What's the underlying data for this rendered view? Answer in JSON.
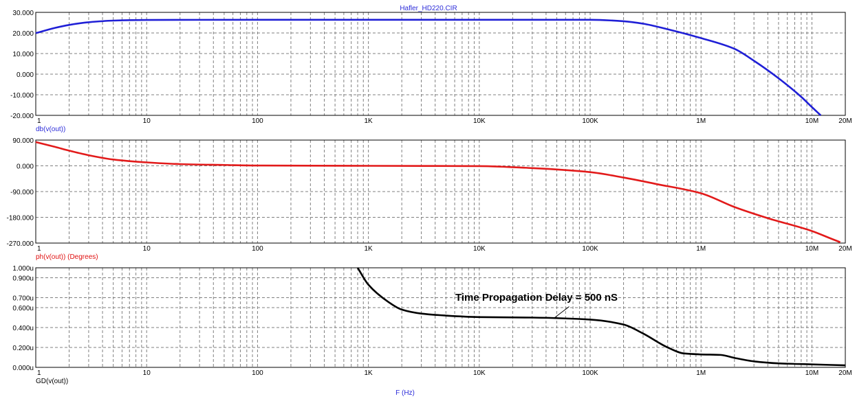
{
  "title": "Hafler_HD220.CIR",
  "x_axis_label": "F (Hz)",
  "x_ticks": [
    {
      "f": 1,
      "label": "1"
    },
    {
      "f": 10,
      "label": "10"
    },
    {
      "f": 100,
      "label": "100"
    },
    {
      "f": 1000,
      "label": "1K"
    },
    {
      "f": 10000,
      "label": "10K"
    },
    {
      "f": 100000,
      "label": "100K"
    },
    {
      "f": 1000000,
      "label": "1M"
    },
    {
      "f": 10000000,
      "label": "10M"
    },
    {
      "f": 20000000,
      "label": "20M"
    }
  ],
  "colors": {
    "grid": "#7f7f7f",
    "frame": "#000000"
  },
  "chart_data": [
    {
      "type": "line",
      "xscale": "log",
      "xlim": [
        1,
        20000000
      ],
      "ylim": [
        -20,
        30
      ],
      "label": "db(v(out))",
      "label_color": "#2b2bd9",
      "line_color": "#1f1fd6",
      "y_ticks": [
        {
          "v": 30,
          "label": "30.000"
        },
        {
          "v": 20,
          "label": "20.000"
        },
        {
          "v": 10,
          "label": "10.000"
        },
        {
          "v": 0,
          "label": "0.000"
        },
        {
          "v": -10,
          "label": "-10.000"
        },
        {
          "v": -20,
          "label": "-20.000"
        }
      ],
      "x": [
        1,
        1.5,
        2,
        3,
        5,
        10,
        100,
        1000,
        10000,
        100000,
        200000,
        300000,
        500000,
        1000000,
        2000000,
        3000000,
        5000000,
        8000000,
        10000000,
        12000000
      ],
      "y": [
        19.9,
        22.5,
        23.9,
        25.2,
        26.0,
        26.3,
        26.4,
        26.4,
        26.4,
        26.4,
        25.7,
        24.5,
        21.8,
        17.5,
        12.3,
        6.5,
        -2.0,
        -11.0,
        -16.0,
        -20.0
      ]
    },
    {
      "type": "line",
      "xscale": "log",
      "xlim": [
        1,
        20000000
      ],
      "ylim": [
        -270,
        90
      ],
      "label": "ph(v(out)) (Degrees)",
      "label_color": "#e01010",
      "line_color": "#e21a1a",
      "y_ticks": [
        {
          "v": 90,
          "label": "90.000"
        },
        {
          "v": 0,
          "label": "0.000"
        },
        {
          "v": -90,
          "label": "-90.000"
        },
        {
          "v": -180,
          "label": "-180.000"
        },
        {
          "v": -270,
          "label": "-270.000"
        }
      ],
      "x": [
        1,
        1.5,
        2,
        3,
        5,
        10,
        20,
        50,
        100,
        1000,
        10000,
        30000,
        100000,
        200000,
        400000,
        1000000,
        2000000,
        4000000,
        10000000,
        15000000,
        18000000
      ],
      "y": [
        83,
        66,
        53,
        37,
        22,
        12,
        6,
        3,
        1,
        0,
        -1,
        -8,
        -22,
        -41,
        -64,
        -96,
        -144,
        -183,
        -228,
        -255,
        -267
      ]
    },
    {
      "type": "line",
      "xscale": "log",
      "xlim": [
        1,
        20000000
      ],
      "ylim": [
        0,
        1.0
      ],
      "label": "GD(v(out))",
      "label_color": "#000000",
      "line_color": "#000000",
      "y_ticks": [
        {
          "v": 1.0,
          "label": "1.000u"
        },
        {
          "v": 0.9,
          "label": "0.900u"
        },
        {
          "v": 0.7,
          "label": "0.700u"
        },
        {
          "v": 0.6,
          "label": "0.600u"
        },
        {
          "v": 0.4,
          "label": "0.400u"
        },
        {
          "v": 0.2,
          "label": "0.200u"
        },
        {
          "v": 0.0,
          "label": "0.000u"
        }
      ],
      "x": [
        800,
        1000,
        1500,
        2000,
        3000,
        5000,
        10000,
        30000,
        100000,
        200000,
        300000,
        500000,
        700000,
        1000000,
        1500000,
        2000000,
        3000000,
        5000000,
        10000000,
        20000000
      ],
      "y": [
        1.0,
        0.83,
        0.66,
        0.58,
        0.54,
        0.52,
        0.505,
        0.5,
        0.48,
        0.43,
        0.34,
        0.2,
        0.14,
        0.13,
        0.125,
        0.095,
        0.06,
        0.04,
        0.03,
        0.02
      ],
      "annotation": {
        "text": "Time Propagation Delay = 500 nS",
        "x": 50000,
        "y": 0.5
      }
    }
  ]
}
